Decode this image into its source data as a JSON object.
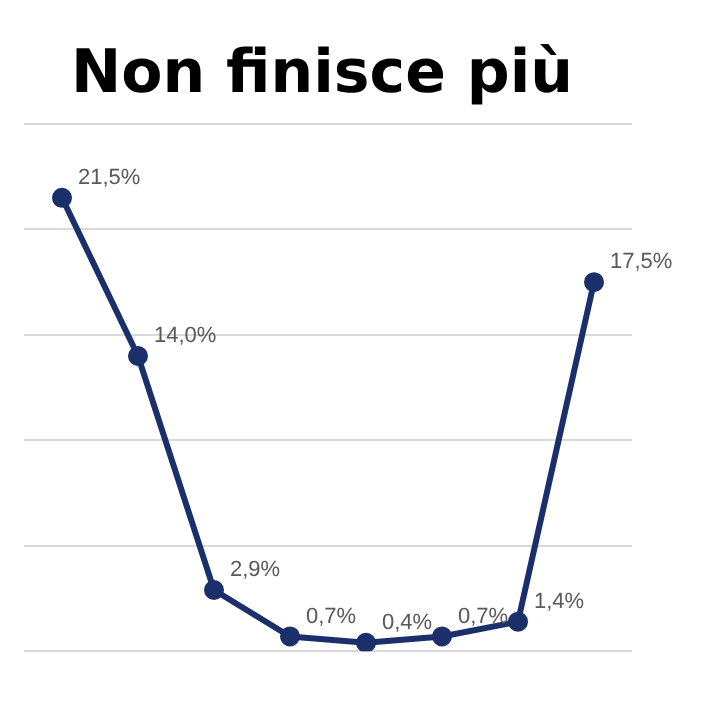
{
  "chart_data": {
    "type": "line",
    "title": "Non finisce più",
    "categories": [
      null,
      null,
      null,
      null,
      null,
      null,
      null,
      null
    ],
    "series": [
      {
        "color": "#1b2f6b",
        "values": [
          21.5,
          14.0,
          2.9,
          0.7,
          0.4,
          0.7,
          1.4,
          17.5
        ],
        "value_labels": [
          "21,5%",
          "14,0%",
          "2,9%",
          "0,7%",
          "0,4%",
          "0,7%",
          "1,4%",
          "17,5%"
        ]
      }
    ],
    "ylim": [
      0,
      25
    ],
    "yticks": [
      {
        "value": 0,
        "label": null
      },
      {
        "value": 5,
        "label": null
      },
      {
        "value": 10,
        "label": null
      },
      {
        "value": 15,
        "label": null
      },
      {
        "value": 20,
        "label": null
      },
      {
        "value": 25,
        "label": null
      }
    ],
    "grid": "y",
    "legend": false,
    "marker": "circle",
    "line_style": "solid"
  }
}
